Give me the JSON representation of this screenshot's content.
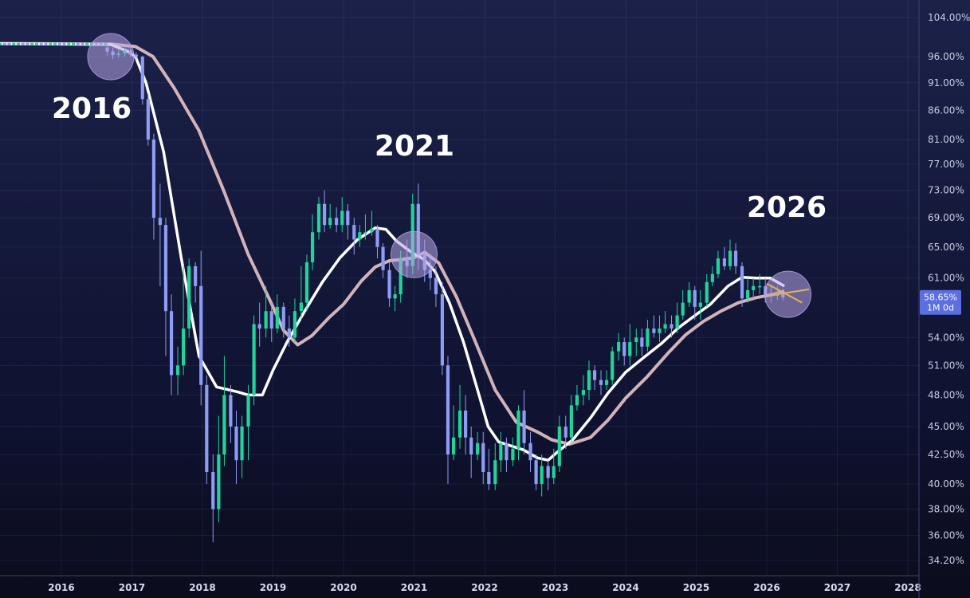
{
  "chart_data": {
    "type": "candlestick",
    "x_ticks": [
      "2016",
      "2017",
      "2018",
      "2019",
      "2020",
      "2021",
      "2022",
      "2023",
      "2024",
      "2025",
      "2026",
      "2027",
      "2028"
    ],
    "y_ticks": [
      "104.00%",
      "96.00%",
      "91.00%",
      "86.00%",
      "81.00%",
      "77.00%",
      "73.00%",
      "69.00%",
      "65.00%",
      "61.00%",
      "54.00%",
      "51.00%",
      "48.00%",
      "45.00%",
      "42.50%",
      "40.00%",
      "38.00%",
      "36.00%",
      "34.20%"
    ],
    "y_scale": "log",
    "current_price": {
      "value_label": "58.65%",
      "interval_label": "1M 0d",
      "value": 58.65
    },
    "annotations": [
      "2016",
      "2021",
      "2026"
    ],
    "highlight_circles": [
      {
        "date": 2016.7,
        "value": 96.0
      },
      {
        "date": 2021.0,
        "value": 64.0
      },
      {
        "date": 2026.3,
        "value": 59.0
      }
    ],
    "colors": {
      "up": "#22d39a",
      "down": "#8e9cf5",
      "ma_fast": "#ffffff",
      "ma_slow": "#e8c4c8",
      "circle": "#b7a6e6",
      "projection": "#e3b05a",
      "price_box": "#5b6fe0"
    },
    "projection": [
      {
        "from": [
          2026.0,
          58.8
        ],
        "to": [
          2026.6,
          59.6
        ]
      },
      {
        "from": [
          2026.0,
          60.3
        ],
        "to": [
          2026.5,
          58.0
        ]
      }
    ],
    "ma_fast": [
      [
        2015.0,
        98.6
      ],
      [
        2016.7,
        98.4
      ],
      [
        2016.95,
        97.0
      ],
      [
        2017.05,
        96.0
      ],
      [
        2017.2,
        91
      ],
      [
        2017.45,
        79
      ],
      [
        2017.7,
        63.5
      ],
      [
        2017.95,
        52
      ],
      [
        2018.2,
        48.8
      ],
      [
        2018.5,
        48.3
      ],
      [
        2018.65,
        48.0
      ],
      [
        2018.85,
        48.0
      ],
      [
        2019.0,
        50.5
      ],
      [
        2019.2,
        53.5
      ],
      [
        2019.45,
        57
      ],
      [
        2019.7,
        60.5
      ],
      [
        2019.95,
        63.6
      ],
      [
        2020.2,
        66.0
      ],
      [
        2020.45,
        67.6
      ],
      [
        2020.6,
        67.4
      ],
      [
        2020.75,
        65.8
      ],
      [
        2020.95,
        64.4
      ],
      [
        2021.15,
        63.3
      ],
      [
        2021.3,
        61.8
      ],
      [
        2021.5,
        58
      ],
      [
        2021.7,
        53.5
      ],
      [
        2021.9,
        48.5
      ],
      [
        2022.05,
        45.0
      ],
      [
        2022.2,
        43.6
      ],
      [
        2022.35,
        43.3
      ],
      [
        2022.55,
        42.9
      ],
      [
        2022.75,
        42.2
      ],
      [
        2022.9,
        42.0
      ],
      [
        2023.05,
        42.8
      ],
      [
        2023.25,
        43.8
      ],
      [
        2023.5,
        45.8
      ],
      [
        2023.75,
        48.2
      ],
      [
        2024.0,
        50.3
      ],
      [
        2024.25,
        51.8
      ],
      [
        2024.5,
        53.3
      ],
      [
        2024.75,
        55.1
      ],
      [
        2025.0,
        56.6
      ],
      [
        2025.2,
        57.8
      ],
      [
        2025.45,
        60.0
      ],
      [
        2025.65,
        61.1
      ],
      [
        2025.85,
        61.0
      ],
      [
        2026.05,
        61.0
      ],
      [
        2026.25,
        60.0
      ]
    ],
    "ma_slow": [
      [
        2015.0,
        98.6
      ],
      [
        2016.7,
        98.5
      ],
      [
        2017.05,
        98.0
      ],
      [
        2017.3,
        96
      ],
      [
        2017.6,
        90
      ],
      [
        2017.95,
        82.5
      ],
      [
        2018.3,
        73
      ],
      [
        2018.65,
        64
      ],
      [
        2018.95,
        58.4
      ],
      [
        2019.15,
        54.8
      ],
      [
        2019.35,
        53.2
      ],
      [
        2019.55,
        54.2
      ],
      [
        2019.8,
        56.3
      ],
      [
        2020.0,
        57.8
      ],
      [
        2020.25,
        60.6
      ],
      [
        2020.45,
        62.4
      ],
      [
        2020.65,
        63.2
      ],
      [
        2020.85,
        63.4
      ],
      [
        2021.0,
        63.6
      ],
      [
        2021.15,
        64.3
      ],
      [
        2021.35,
        62.9
      ],
      [
        2021.6,
        58.7
      ],
      [
        2021.85,
        53.9
      ],
      [
        2022.15,
        48.5
      ],
      [
        2022.45,
        45.4
      ],
      [
        2022.75,
        44.5
      ],
      [
        2022.95,
        43.8
      ],
      [
        2023.2,
        43.4
      ],
      [
        2023.5,
        44.0
      ],
      [
        2023.75,
        45.6
      ],
      [
        2024.0,
        47.7
      ],
      [
        2024.3,
        49.8
      ],
      [
        2024.6,
        52.3
      ],
      [
        2024.85,
        54.3
      ],
      [
        2025.1,
        55.8
      ],
      [
        2025.35,
        57.0
      ],
      [
        2025.6,
        58.0
      ],
      [
        2025.85,
        58.6
      ],
      [
        2026.1,
        59.0
      ],
      [
        2026.25,
        59.4
      ]
    ],
    "candles": [
      [
        2016.65,
        97.8,
        97.0,
        98.6,
        96.2
      ],
      [
        2016.73,
        97.0,
        96.3,
        97.8,
        95.5
      ],
      [
        2016.81,
        96.3,
        96.6,
        97.4,
        95.8
      ],
      [
        2016.9,
        96.6,
        97.2,
        97.8,
        96.0
      ],
      [
        2016.98,
        97.2,
        96.4,
        97.6,
        95.9
      ],
      [
        2017.06,
        96.4,
        96.0,
        96.9,
        95.3
      ],
      [
        2017.15,
        96.0,
        88.0,
        96.2,
        87.0
      ],
      [
        2017.23,
        88.0,
        81.0,
        89.0,
        80.0
      ],
      [
        2017.31,
        81.0,
        69.0,
        82.0,
        66.0
      ],
      [
        2017.4,
        69.0,
        68.0,
        74.0,
        60.0
      ],
      [
        2017.48,
        68.0,
        57.0,
        69.0,
        52.0
      ],
      [
        2017.56,
        57.0,
        50.0,
        59.0,
        48.0
      ],
      [
        2017.65,
        50.0,
        51.0,
        53.0,
        48.0
      ],
      [
        2017.73,
        51.0,
        55.0,
        62.5,
        50.0
      ],
      [
        2017.81,
        55.0,
        62.5,
        63.5,
        54.0
      ],
      [
        2017.9,
        62.5,
        60.0,
        63.0,
        58.0
      ],
      [
        2017.98,
        60.0,
        49.0,
        64.5,
        47.0
      ],
      [
        2018.06,
        49.0,
        41.0,
        50.0,
        40.0
      ],
      [
        2018.15,
        41.0,
        38.0,
        42.5,
        35.5
      ],
      [
        2018.23,
        38.0,
        42.5,
        46.0,
        37.0
      ],
      [
        2018.31,
        42.5,
        48.0,
        52.0,
        41.5
      ],
      [
        2018.4,
        48.0,
        45.0,
        49.0,
        43.5
      ],
      [
        2018.48,
        45.0,
        42.0,
        46.5,
        40.0
      ],
      [
        2018.56,
        42.0,
        45.0,
        46.0,
        40.5
      ],
      [
        2018.65,
        45.0,
        48.0,
        49.0,
        42.0
      ],
      [
        2018.73,
        48.0,
        55.5,
        56.5,
        47.0
      ],
      [
        2018.81,
        55.5,
        55.0,
        58.0,
        53.0
      ],
      [
        2018.9,
        55.0,
        57.0,
        60.0,
        54.0
      ],
      [
        2018.98,
        57.0,
        55.0,
        58.0,
        53.5
      ],
      [
        2019.06,
        55.0,
        57.5,
        59.0,
        54.5
      ],
      [
        2019.15,
        57.5,
        55.0,
        58.0,
        54.0
      ],
      [
        2019.23,
        55.0,
        54.0,
        56.5,
        53.0
      ],
      [
        2019.31,
        54.0,
        57.0,
        58.5,
        53.5
      ],
      [
        2019.4,
        57.0,
        58.0,
        62.5,
        56.0
      ],
      [
        2019.48,
        58.0,
        63.0,
        64.0,
        57.0
      ],
      [
        2019.56,
        63.0,
        67.0,
        69.5,
        62.0
      ],
      [
        2019.65,
        67.0,
        71.0,
        72.0,
        66.0
      ],
      [
        2019.73,
        71.0,
        68.0,
        73.0,
        67.0
      ],
      [
        2019.81,
        68.0,
        69.0,
        71.0,
        67.5
      ],
      [
        2019.9,
        69.0,
        68.0,
        70.5,
        67.0
      ],
      [
        2019.98,
        68.0,
        70.0,
        72.0,
        67.0
      ],
      [
        2020.06,
        70.0,
        68.0,
        71.0,
        66.0
      ],
      [
        2020.15,
        68.0,
        66.0,
        69.0,
        64.0
      ],
      [
        2020.23,
        66.0,
        67.0,
        68.0,
        65.0
      ],
      [
        2020.31,
        67.0,
        67.0,
        69.5,
        66.0
      ],
      [
        2020.4,
        67.0,
        67.5,
        70.0,
        66.5
      ],
      [
        2020.48,
        67.5,
        65.0,
        68.0,
        63.5
      ],
      [
        2020.56,
        65.0,
        62.0,
        65.5,
        61.0
      ],
      [
        2020.65,
        62.0,
        58.5,
        63.0,
        57.5
      ],
      [
        2020.73,
        58.5,
        59.0,
        60.0,
        57.0
      ],
      [
        2020.81,
        59.0,
        63.5,
        64.5,
        58.0
      ],
      [
        2020.9,
        63.5,
        62.5,
        66.0,
        61.0
      ],
      [
        2020.98,
        62.5,
        71.0,
        72.5,
        61.5
      ],
      [
        2021.06,
        71.0,
        64.0,
        74.0,
        62.0
      ],
      [
        2021.15,
        64.0,
        62.0,
        66.0,
        60.5
      ],
      [
        2021.23,
        62.0,
        61.0,
        64.0,
        59.5
      ],
      [
        2021.31,
        61.0,
        59.0,
        62.5,
        57.5
      ],
      [
        2021.4,
        59.0,
        51.0,
        60.5,
        50.0
      ],
      [
        2021.48,
        51.0,
        42.5,
        52.0,
        40.0
      ],
      [
        2021.56,
        42.5,
        44.0,
        47.0,
        42.0
      ],
      [
        2021.65,
        44.0,
        46.5,
        49.0,
        43.0
      ],
      [
        2021.73,
        46.5,
        44.0,
        48.0,
        42.5
      ],
      [
        2021.81,
        44.0,
        42.5,
        45.0,
        40.5
      ],
      [
        2021.9,
        42.5,
        43.5,
        44.5,
        42.0
      ],
      [
        2021.98,
        43.5,
        41.0,
        44.5,
        40.0
      ],
      [
        2022.06,
        41.0,
        40.0,
        43.0,
        39.5
      ],
      [
        2022.15,
        40.0,
        42.0,
        43.5,
        39.5
      ],
      [
        2022.23,
        42.0,
        43.5,
        44.5,
        41.0
      ],
      [
        2022.31,
        43.5,
        42.0,
        44.0,
        41.0
      ],
      [
        2022.4,
        42.0,
        43.0,
        44.0,
        41.5
      ],
      [
        2022.48,
        43.0,
        46.5,
        47.0,
        42.0
      ],
      [
        2022.56,
        46.5,
        43.5,
        48.5,
        42.5
      ],
      [
        2022.65,
        43.5,
        42.0,
        44.5,
        41.0
      ],
      [
        2022.73,
        42.0,
        40.0,
        42.5,
        39.5
      ],
      [
        2022.81,
        40.0,
        41.5,
        42.5,
        39.0
      ],
      [
        2022.9,
        41.5,
        40.5,
        42.0,
        39.5
      ],
      [
        2022.98,
        40.5,
        41.5,
        43.0,
        40.0
      ],
      [
        2023.06,
        41.5,
        45.0,
        46.0,
        41.0
      ],
      [
        2023.15,
        45.0,
        44.0,
        46.0,
        43.0
      ],
      [
        2023.23,
        44.0,
        47.0,
        48.0,
        43.5
      ],
      [
        2023.31,
        47.0,
        48.0,
        49.0,
        46.5
      ],
      [
        2023.4,
        48.0,
        48.5,
        50.0,
        47.0
      ],
      [
        2023.48,
        48.5,
        50.5,
        51.5,
        47.5
      ],
      [
        2023.56,
        50.5,
        49.5,
        51.0,
        48.5
      ],
      [
        2023.65,
        49.5,
        49.0,
        50.5,
        48.0
      ],
      [
        2023.73,
        49.0,
        49.5,
        50.5,
        48.5
      ],
      [
        2023.81,
        49.5,
        52.5,
        53.0,
        49.0
      ],
      [
        2023.9,
        52.5,
        53.5,
        54.5,
        51.5
      ],
      [
        2023.98,
        53.5,
        52.0,
        54.0,
        51.0
      ],
      [
        2024.06,
        52.0,
        53.5,
        55.5,
        51.0
      ],
      [
        2024.15,
        53.5,
        54.0,
        55.0,
        52.0
      ],
      [
        2024.23,
        54.0,
        53.0,
        55.0,
        52.0
      ],
      [
        2024.31,
        53.0,
        55.0,
        56.0,
        52.5
      ],
      [
        2024.4,
        55.0,
        54.5,
        56.5,
        54.0
      ],
      [
        2024.48,
        54.5,
        55.0,
        56.5,
        53.5
      ],
      [
        2024.56,
        55.0,
        55.5,
        57.0,
        54.5
      ],
      [
        2024.65,
        55.5,
        55.0,
        56.5,
        54.0
      ],
      [
        2024.73,
        55.0,
        56.5,
        58.0,
        54.5
      ],
      [
        2024.81,
        56.5,
        58.0,
        59.5,
        56.0
      ],
      [
        2024.9,
        58.0,
        59.5,
        60.5,
        57.5
      ],
      [
        2024.98,
        59.5,
        57.5,
        60.0,
        56.0
      ],
      [
        2025.06,
        57.5,
        58.0,
        59.5,
        56.0
      ],
      [
        2025.15,
        58.0,
        60.5,
        61.5,
        57.5
      ],
      [
        2025.23,
        60.5,
        61.5,
        62.5,
        60.0
      ],
      [
        2025.31,
        61.5,
        63.5,
        64.5,
        61.0
      ],
      [
        2025.4,
        63.5,
        62.5,
        65.0,
        62.0
      ],
      [
        2025.48,
        62.5,
        64.5,
        66.0,
        62.0
      ],
      [
        2025.56,
        64.5,
        62.5,
        65.5,
        61.5
      ],
      [
        2025.65,
        62.5,
        58.5,
        63.0,
        57.5
      ],
      [
        2025.73,
        58.5,
        59.5,
        61.0,
        58.0
      ],
      [
        2025.81,
        59.5,
        60.0,
        61.0,
        58.5
      ],
      [
        2025.9,
        60.0,
        60.0,
        61.5,
        59.0
      ],
      [
        2025.98,
        60.0,
        59.0,
        61.0,
        58.0
      ],
      [
        2026.06,
        59.0,
        58.8,
        60.0,
        58.0
      ],
      [
        2026.15,
        58.8,
        59.2,
        60.0,
        58.3
      ],
      [
        2026.23,
        59.2,
        58.65,
        59.6,
        58.3
      ]
    ]
  }
}
